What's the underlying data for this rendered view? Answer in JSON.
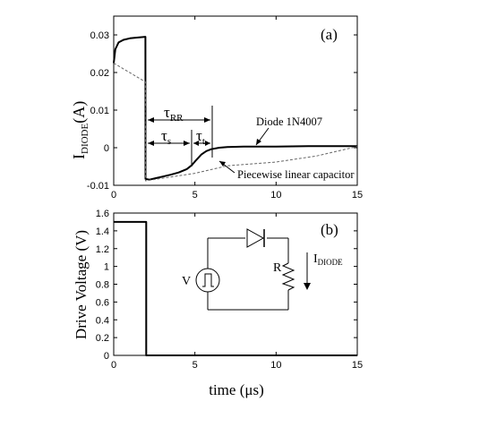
{
  "chart_data": [
    {
      "id": "a",
      "type": "line",
      "panel_label": "(a)",
      "ylabel_main": "I",
      "ylabel_sub": "DIODE",
      "ylabel_tail": "(A)",
      "xlim": [
        0,
        15
      ],
      "ylim": [
        -0.01,
        0.035
      ],
      "xticks": [
        "0",
        "5",
        "10",
        "15"
      ],
      "yticks": [
        "-0.01",
        "0",
        "0.01",
        "0.02",
        "0.03"
      ],
      "series": [
        {
          "name": "Diode 1N4007",
          "style": "solid",
          "x": [
            0,
            0.1,
            0.3,
            0.6,
            1.0,
            1.5,
            1.95,
            1.96,
            2.2,
            2.6,
            3.0,
            3.5,
            4.0,
            4.5,
            4.8,
            5.1,
            5.4,
            5.7,
            6.0,
            6.5,
            7.0,
            8.0,
            9.0,
            10.0,
            12.0,
            15.0
          ],
          "y": [
            0.0225,
            0.0262,
            0.028,
            0.0287,
            0.0291,
            0.0293,
            0.0295,
            -0.0083,
            -0.0085,
            -0.0081,
            -0.0077,
            -0.0072,
            -0.0066,
            -0.0057,
            -0.0047,
            -0.0032,
            -0.0018,
            -0.0009,
            -0.0004,
            0.0,
            0.0002,
            0.0003,
            0.0003,
            0.0003,
            0.0004,
            0.0004
          ]
        },
        {
          "name": "Piecewise linear capacitor",
          "style": "dashed",
          "x": [
            0,
            1.95,
            1.96,
            5.0,
            7.0,
            10.0,
            12.5,
            15.0
          ],
          "y": [
            0.0225,
            0.0175,
            -0.0088,
            -0.0068,
            -0.0048,
            -0.0038,
            -0.0022,
            0.0003
          ]
        }
      ],
      "annotations": {
        "tau_rr_main": "τ",
        "tau_rr_sub": "RR",
        "tau_s_main": "τ",
        "tau_s_sub": "s",
        "tau_t_main": "τ",
        "tau_t_sub": "t",
        "diode_label": "Diode 1N4007",
        "capacitor_label": "Piecewise linear capacitor",
        "tau_rr_span": [
          2.0,
          6.0
        ],
        "tau_s_span": [
          2.0,
          4.8
        ],
        "tau_t_span": [
          4.8,
          6.0
        ]
      }
    },
    {
      "id": "b",
      "type": "line",
      "panel_label": "(b)",
      "ylabel": "Drive Voltage (V)",
      "xlabel": "time (μs)",
      "xlim": [
        0,
        15
      ],
      "ylim": [
        0,
        1.6
      ],
      "xticks": [
        "0",
        "5",
        "10",
        "15"
      ],
      "yticks": [
        "0",
        "0.2",
        "0.4",
        "0.6",
        "0.8",
        "1",
        "1.2",
        "1.4",
        "1.6"
      ],
      "series": [
        {
          "name": "",
          "style": "solid",
          "x": [
            0,
            2.0,
            2.0,
            15.0
          ],
          "y": [
            1.5,
            1.5,
            0,
            0
          ]
        }
      ],
      "circuit": {
        "source_label": "V",
        "resistor_label": "R",
        "current_main": "I",
        "current_sub": "DIODE"
      }
    }
  ]
}
